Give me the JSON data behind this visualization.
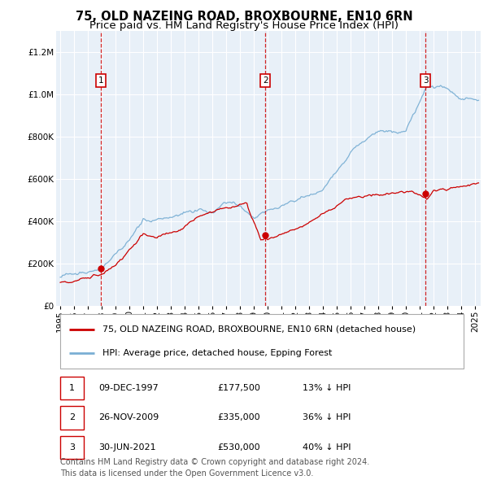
{
  "title": "75, OLD NAZEING ROAD, BROXBOURNE, EN10 6RN",
  "subtitle": "Price paid vs. HM Land Registry's House Price Index (HPI)",
  "legend_line1": "75, OLD NAZEING ROAD, BROXBOURNE, EN10 6RN (detached house)",
  "legend_line2": "HPI: Average price, detached house, Epping Forest",
  "table_rows": [
    {
      "num": "1",
      "date": "09-DEC-1997",
      "price": "£177,500",
      "hpi": "13% ↓ HPI"
    },
    {
      "num": "2",
      "date": "26-NOV-2009",
      "price": "£335,000",
      "hpi": "36% ↓ HPI"
    },
    {
      "num": "3",
      "date": "30-JUN-2021",
      "price": "£530,000",
      "hpi": "40% ↓ HPI"
    }
  ],
  "footnote1": "Contains HM Land Registry data © Crown copyright and database right 2024.",
  "footnote2": "This data is licensed under the Open Government Licence v3.0.",
  "sale_prices": [
    177500,
    335000,
    530000
  ],
  "dot_color": "#cc0000",
  "red_line_color": "#cc0000",
  "blue_line_color": "#7aafd4",
  "plot_bg_color": "#e8f0f8",
  "ylim": [
    0,
    1300000
  ],
  "yticks": [
    0,
    200000,
    400000,
    600000,
    800000,
    1000000,
    1200000
  ],
  "xlim_start": 1994.7,
  "xlim_end": 2025.4,
  "title_fontsize": 10.5,
  "subtitle_fontsize": 9.5,
  "axis_fontsize": 7.5,
  "legend_fontsize": 8,
  "table_fontsize": 8,
  "footnote_fontsize": 7
}
